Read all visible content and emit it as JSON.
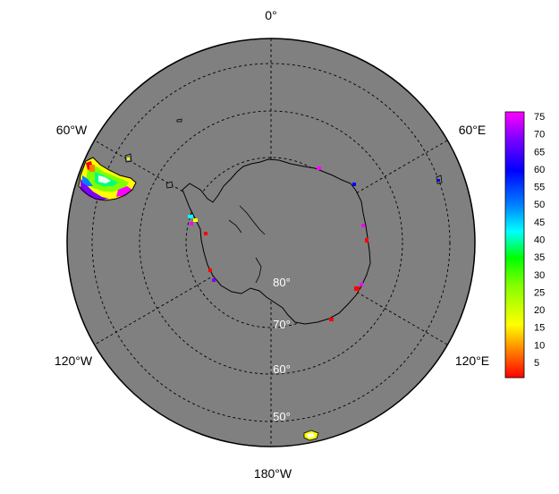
{
  "map": {
    "projection": "south-polar-stereographic",
    "ocean_color": "#808080",
    "outline_color": "#000000",
    "grid_style": "dashed",
    "longitude_labels": [
      "0°",
      "60°E",
      "120°E",
      "180°W",
      "120°W",
      "60°W"
    ],
    "latitude_labels": [
      "80°",
      "70°",
      "60°",
      "50°"
    ]
  },
  "colorbar": {
    "ticks": [
      "75",
      "70",
      "65",
      "60",
      "55",
      "50",
      "45",
      "40",
      "35",
      "30",
      "25",
      "20",
      "15",
      "10",
      "5"
    ],
    "colors": [
      "#ff0000",
      "#ff8000",
      "#ffff00",
      "#80ff00",
      "#00ff00",
      "#00ffff",
      "#0080ff",
      "#0000ff",
      "#8000ff",
      "#ff00ff"
    ]
  }
}
